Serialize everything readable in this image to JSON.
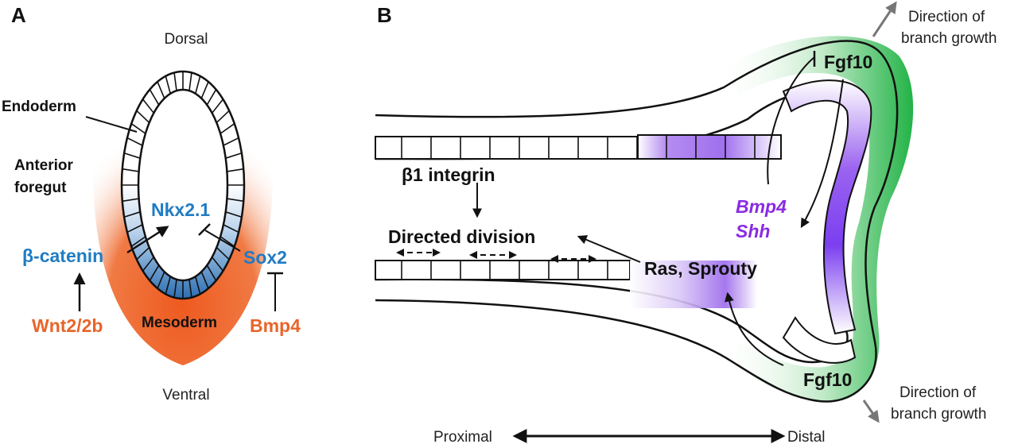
{
  "panel_a": {
    "letter": "A",
    "dorsal": "Dorsal",
    "ventral": "Ventral",
    "endoderm": "Endoderm",
    "anterior": "Anterior",
    "foregut": "foregut",
    "nkx21": "Nkx2.1",
    "sox2": "Sox2",
    "beta_catenin": "β-catenin",
    "wnt": "Wnt2/2b",
    "bmp4": "Bmp4",
    "mesoderm": "Mesoderm"
  },
  "panel_b": {
    "letter": "B",
    "fgf10_top": "Fgf10",
    "fgf10_bottom": "Fgf10",
    "direction_top_1": "Direction of",
    "direction_top_2": "branch growth",
    "direction_bottom_1": "Direction of",
    "direction_bottom_2": "branch growth",
    "beta1_integrin": "β1 integrin",
    "directed_division": "Directed division",
    "ras_sprouty": "Ras, Sprouty",
    "bmp4": "Bmp4",
    "shh": "Shh",
    "proximal": "Proximal",
    "distal": "Distal"
  },
  "colors": {
    "blue": "#1f7cc4",
    "orange": "#e8652a",
    "purple": "#8a2be2",
    "green": "#2db84a",
    "gray_arrow": "#777777"
  }
}
